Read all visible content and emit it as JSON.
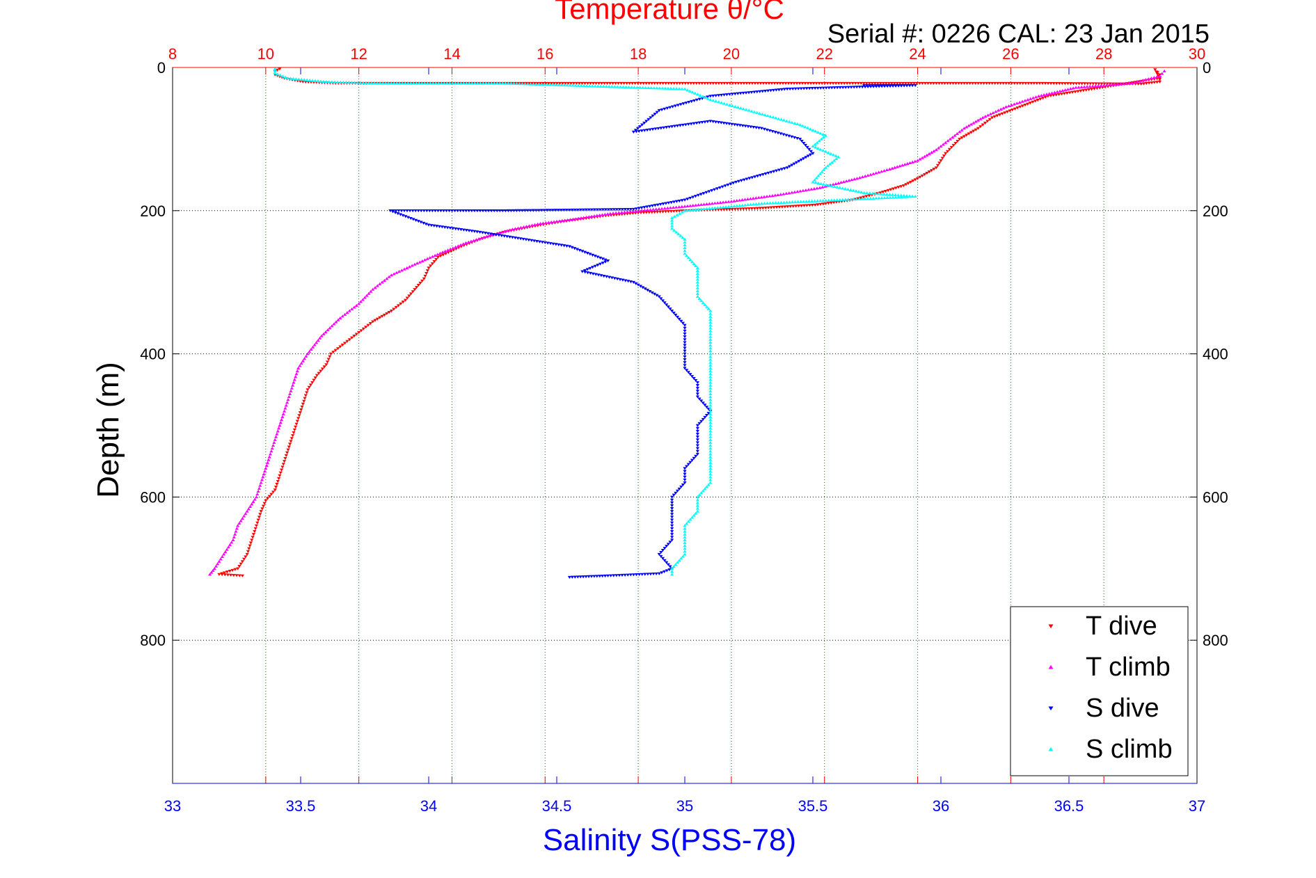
{
  "chart_data": {
    "type": "scatter",
    "title": "Temperature θ/°C",
    "subtitle": "Serial #: 0226  CAL: 23 Jan 2015",
    "xlabel": "Salinity S(PSS-78)",
    "ylabel": "Depth (m)",
    "x_axis": {
      "min": 33,
      "max": 37,
      "ticks": [
        "33",
        "33.5",
        "34",
        "34.5",
        "35",
        "35.5",
        "36",
        "36.5",
        "37"
      ],
      "color": "#0000ff"
    },
    "x2_axis": {
      "min": 8,
      "max": 30,
      "ticks": [
        "8",
        "10",
        "12",
        "14",
        "16",
        "18",
        "20",
        "22",
        "24",
        "26",
        "28",
        "30"
      ],
      "color": "#ff0000"
    },
    "y_axis": {
      "min": 0,
      "max": 1000,
      "reversed": true,
      "ticks": [
        "0",
        "200",
        "400",
        "600",
        "800"
      ]
    },
    "grid": true,
    "legend": {
      "placement": "bottom-right"
    },
    "series": [
      {
        "name": "T dive",
        "axis": "temperature",
        "color": "#ff0000",
        "marker": "triangle-down",
        "points": [
          [
            10.3,
            2
          ],
          [
            10.2,
            5
          ],
          [
            10.2,
            10
          ],
          [
            10.4,
            15
          ],
          [
            10.8,
            20
          ],
          [
            11.5,
            22
          ],
          [
            13.5,
            22
          ],
          [
            26.5,
            22
          ],
          [
            28.8,
            23
          ],
          [
            29.2,
            20
          ],
          [
            29.2,
            10
          ],
          [
            29.1,
            3
          ],
          [
            29.2,
            15
          ],
          [
            26.8,
            40
          ],
          [
            26.2,
            55
          ],
          [
            25.6,
            70
          ],
          [
            25.3,
            85
          ],
          [
            24.9,
            100
          ],
          [
            24.6,
            120
          ],
          [
            24.4,
            140
          ],
          [
            24.0,
            155
          ],
          [
            23.7,
            165
          ],
          [
            23.2,
            175
          ],
          [
            22.6,
            185
          ],
          [
            21.8,
            192
          ],
          [
            20.5,
            197
          ],
          [
            19.0,
            200
          ],
          [
            18.0,
            203
          ],
          [
            17.3,
            207
          ],
          [
            16.4,
            215
          ],
          [
            15.9,
            220
          ],
          [
            15.1,
            230
          ],
          [
            14.6,
            240
          ],
          [
            14.2,
            250
          ],
          [
            13.7,
            265
          ],
          [
            13.5,
            280
          ],
          [
            13.4,
            295
          ],
          [
            13.2,
            310
          ],
          [
            13.0,
            325
          ],
          [
            12.7,
            340
          ],
          [
            12.3,
            355
          ],
          [
            12.0,
            370
          ],
          [
            11.7,
            385
          ],
          [
            11.4,
            400
          ],
          [
            11.3,
            415
          ],
          [
            11.1,
            430
          ],
          [
            10.9,
            450
          ],
          [
            10.8,
            470
          ],
          [
            10.7,
            490
          ],
          [
            10.6,
            510
          ],
          [
            10.5,
            530
          ],
          [
            10.4,
            550
          ],
          [
            10.3,
            570
          ],
          [
            10.2,
            590
          ],
          [
            10.0,
            605
          ],
          [
            9.9,
            620
          ],
          [
            9.8,
            640
          ],
          [
            9.7,
            660
          ],
          [
            9.6,
            680
          ],
          [
            9.4,
            700
          ],
          [
            9.0,
            708
          ],
          [
            9.5,
            710
          ]
        ]
      },
      {
        "name": "T climb",
        "axis": "temperature",
        "color": "#ff00ff",
        "marker": "triangle-up",
        "points": [
          [
            29.3,
            5
          ],
          [
            29.2,
            12
          ],
          [
            28.6,
            22
          ],
          [
            27.4,
            28
          ],
          [
            26.6,
            40
          ],
          [
            25.9,
            55
          ],
          [
            25.4,
            70
          ],
          [
            25.0,
            85
          ],
          [
            24.7,
            100
          ],
          [
            24.4,
            115
          ],
          [
            24.0,
            130
          ],
          [
            23.4,
            142
          ],
          [
            22.7,
            155
          ],
          [
            21.9,
            168
          ],
          [
            21.0,
            178
          ],
          [
            20.0,
            187
          ],
          [
            19.0,
            194
          ],
          [
            18.2,
            199
          ],
          [
            17.4,
            204
          ],
          [
            16.6,
            212
          ],
          [
            15.9,
            218
          ],
          [
            15.3,
            226
          ],
          [
            14.8,
            235
          ],
          [
            14.3,
            245
          ],
          [
            13.8,
            258
          ],
          [
            13.2,
            275
          ],
          [
            12.7,
            290
          ],
          [
            12.3,
            310
          ],
          [
            12.0,
            330
          ],
          [
            11.6,
            350
          ],
          [
            11.2,
            375
          ],
          [
            10.9,
            400
          ],
          [
            10.7,
            420
          ],
          [
            10.6,
            440
          ],
          [
            10.5,
            460
          ],
          [
            10.4,
            480
          ],
          [
            10.3,
            500
          ],
          [
            10.2,
            520
          ],
          [
            10.1,
            540
          ],
          [
            10.0,
            560
          ],
          [
            9.9,
            580
          ],
          [
            9.8,
            600
          ],
          [
            9.6,
            620
          ],
          [
            9.4,
            640
          ],
          [
            9.3,
            660
          ],
          [
            9.1,
            680
          ],
          [
            8.9,
            700
          ],
          [
            8.8,
            708
          ]
        ]
      },
      {
        "name": "S dive",
        "axis": "salinity",
        "color": "#0000ff",
        "marker": "triangle-down",
        "points": [
          [
            35.7,
            25
          ],
          [
            35.9,
            25
          ],
          [
            35.4,
            30
          ],
          [
            35.1,
            40
          ],
          [
            34.9,
            60
          ],
          [
            34.8,
            90
          ],
          [
            35.1,
            75
          ],
          [
            35.3,
            85
          ],
          [
            35.45,
            100
          ],
          [
            35.5,
            120
          ],
          [
            35.4,
            140
          ],
          [
            35.2,
            160
          ],
          [
            35.0,
            185
          ],
          [
            34.8,
            198
          ],
          [
            34.3,
            200
          ],
          [
            33.85,
            200
          ],
          [
            34.0,
            220
          ],
          [
            34.2,
            230
          ],
          [
            34.55,
            250
          ],
          [
            34.7,
            270
          ],
          [
            34.6,
            285
          ],
          [
            34.8,
            300
          ],
          [
            34.9,
            320
          ],
          [
            34.95,
            340
          ],
          [
            35.0,
            360
          ],
          [
            35.0,
            380
          ],
          [
            35.0,
            400
          ],
          [
            35.0,
            420
          ],
          [
            35.05,
            440
          ],
          [
            35.05,
            460
          ],
          [
            35.1,
            480
          ],
          [
            35.05,
            500
          ],
          [
            35.05,
            520
          ],
          [
            35.05,
            540
          ],
          [
            35.0,
            560
          ],
          [
            35.0,
            580
          ],
          [
            34.95,
            600
          ],
          [
            34.95,
            620
          ],
          [
            34.95,
            640
          ],
          [
            34.95,
            660
          ],
          [
            34.9,
            680
          ],
          [
            34.95,
            700
          ],
          [
            34.9,
            707
          ],
          [
            34.7,
            710
          ],
          [
            34.55,
            712
          ]
        ]
      },
      {
        "name": "S climb",
        "axis": "salinity",
        "color": "#00ffff",
        "marker": "triangle-up",
        "points": [
          [
            33.4,
            2
          ],
          [
            33.4,
            8
          ],
          [
            33.45,
            15
          ],
          [
            33.6,
            20
          ],
          [
            33.8,
            22
          ],
          [
            34.3,
            22
          ],
          [
            35.0,
            30
          ],
          [
            35.1,
            45
          ],
          [
            35.25,
            60
          ],
          [
            35.45,
            80
          ],
          [
            35.55,
            95
          ],
          [
            35.5,
            110
          ],
          [
            35.6,
            125
          ],
          [
            35.55,
            140
          ],
          [
            35.5,
            160
          ],
          [
            35.7,
            175
          ],
          [
            35.9,
            180
          ],
          [
            35.3,
            190
          ],
          [
            35.0,
            200
          ],
          [
            34.95,
            210
          ],
          [
            34.95,
            225
          ],
          [
            35.0,
            240
          ],
          [
            35.0,
            260
          ],
          [
            35.05,
            280
          ],
          [
            35.05,
            300
          ],
          [
            35.05,
            320
          ],
          [
            35.1,
            340
          ],
          [
            35.1,
            360
          ],
          [
            35.1,
            380
          ],
          [
            35.1,
            400
          ],
          [
            35.1,
            420
          ],
          [
            35.1,
            440
          ],
          [
            35.1,
            460
          ],
          [
            35.1,
            480
          ],
          [
            35.1,
            500
          ],
          [
            35.1,
            520
          ],
          [
            35.1,
            540
          ],
          [
            35.1,
            560
          ],
          [
            35.1,
            580
          ],
          [
            35.05,
            600
          ],
          [
            35.05,
            620
          ],
          [
            35.0,
            640
          ],
          [
            35.0,
            660
          ],
          [
            35.0,
            680
          ],
          [
            34.95,
            700
          ],
          [
            34.95,
            708
          ]
        ]
      }
    ]
  }
}
